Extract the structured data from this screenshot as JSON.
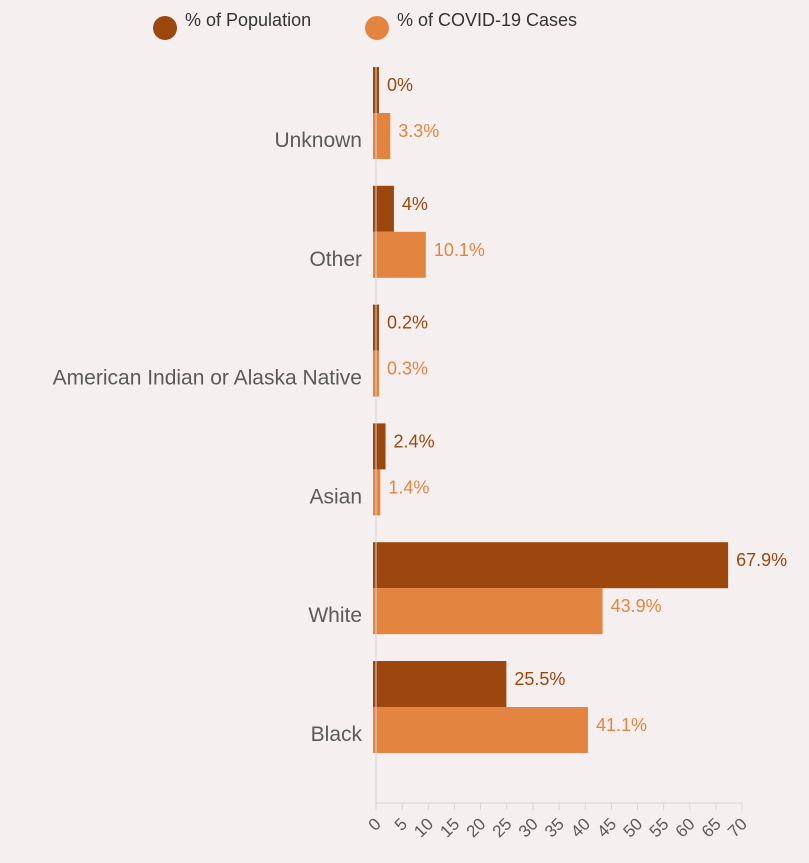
{
  "chart_data": {
    "type": "bar",
    "orientation": "horizontal",
    "categories": [
      "Unknown",
      "Other",
      "American Indian or Alaska Native",
      "Asian",
      "White",
      "Black"
    ],
    "series": [
      {
        "name": "% of Population",
        "values": [
          0,
          4,
          0.2,
          2.4,
          67.9,
          25.5
        ],
        "labels": [
          "0%",
          "4%",
          "0.2%",
          "2.4%",
          "67.9%",
          "25.5%"
        ],
        "color": "#9c470e"
      },
      {
        "name": "% of COVID-19 Cases",
        "values": [
          3.3,
          10.1,
          0.3,
          1.4,
          43.9,
          41.1
        ],
        "labels": [
          "3.3%",
          "10.1%",
          "0.3%",
          "1.4%",
          "43.9%",
          "41.1%"
        ],
        "color": "#e38541"
      }
    ],
    "xticks": [
      "0",
      "5",
      "10",
      "15",
      "20",
      "25",
      "30",
      "35",
      "40",
      "45",
      "50",
      "55",
      "60",
      "65",
      "70"
    ],
    "xlim": [
      0,
      70
    ],
    "legend_position": "top",
    "grid": false
  },
  "colors": {
    "background": "#f5f0ef",
    "axis": "#d9d4d3",
    "category_text": "#5a5a5a"
  }
}
